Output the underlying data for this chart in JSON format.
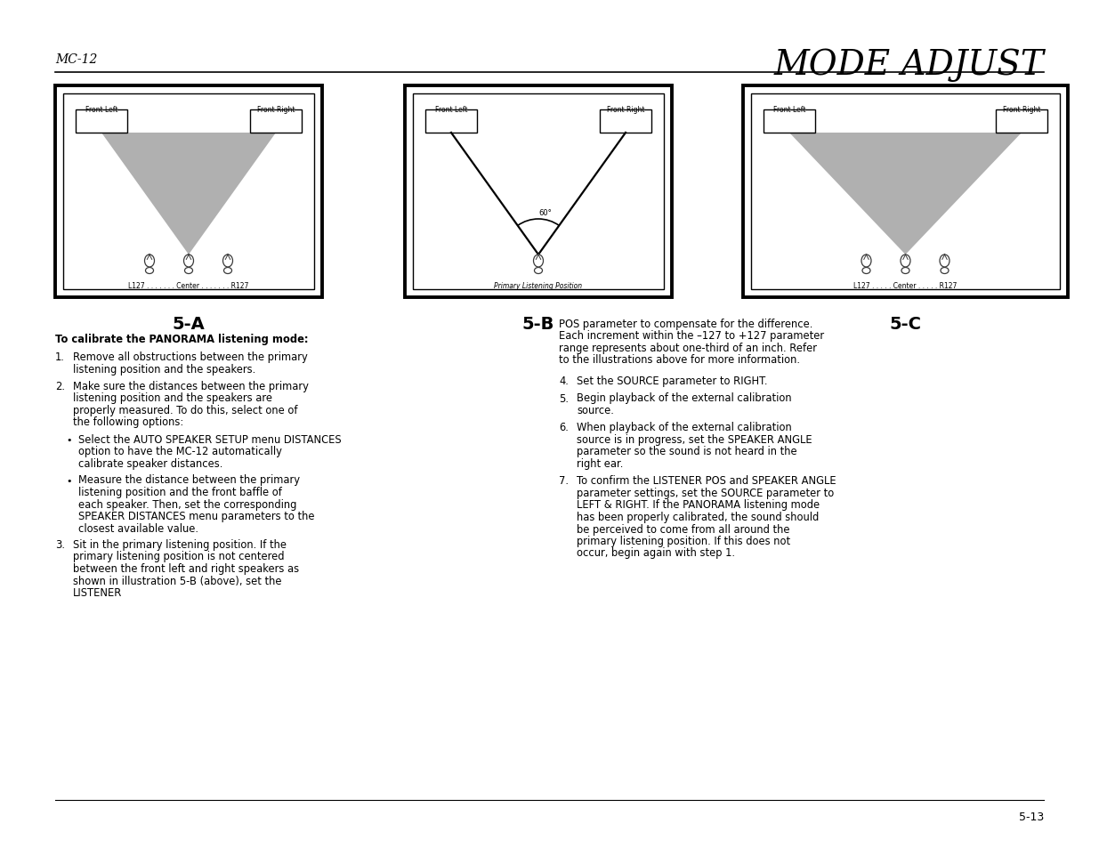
{
  "page_title": "MODE ADJUST",
  "page_subtitle": "MC-12",
  "page_number": "5-13",
  "background_color": "#ffffff",
  "gray_fill": "#b0b0b0",
  "diagrams": [
    {
      "label": "5-A",
      "title_left": "Front Left",
      "title_right": "Front Right",
      "has_gray_triangle": true,
      "has_lines": false,
      "has_arc": false,
      "has_three_listeners": true,
      "listener_label": "L127 . . . . . . . Center . . . . . . . R127",
      "left_listener_filled": true,
      "right_listener_filled": false
    },
    {
      "label": "5-B",
      "title_left": "Front Left",
      "title_right": "Front Right",
      "has_gray_triangle": false,
      "has_lines": true,
      "has_arc": true,
      "arc_label": "60°",
      "has_three_listeners": false,
      "listener_label": "Primary Listening Position",
      "left_listener_filled": false,
      "right_listener_filled": false
    },
    {
      "label": "5-C",
      "title_left": "Front Left",
      "title_right": "Front Right",
      "has_gray_triangle": true,
      "has_lines": false,
      "has_arc": false,
      "has_three_listeners": true,
      "listener_label": "L127 . . . . . Center . . . . . R127",
      "left_listener_filled": false,
      "right_listener_filled": true
    }
  ],
  "body_text_left": [
    {
      "bold": true,
      "text": "To calibrate the PANORAMA listening mode:"
    },
    {
      "numbered": true,
      "num": "1.",
      "text": "Remove all obstructions between the primary listening position and the speakers."
    },
    {
      "numbered": true,
      "num": "2.",
      "text": "Make sure the distances between the primary listening position and the speakers are properly measured. To do this, select one of the following options:"
    },
    {
      "bullet": true,
      "text": "Select the AUTO SPEAKER SETUP menu DISTANCES option to have the MC-12 automatically calibrate speaker distances."
    },
    {
      "bullet": true,
      "text": "Measure the distance between the primary listening position and the front baffle of each speaker. Then, set the corresponding SPEAKER DISTANCES menu parameters to the closest available value."
    },
    {
      "numbered": true,
      "num": "3.",
      "text": "Sit in the primary listening position. If the primary listening position is not centered between the front left and right speakers as shown in illustration 5-B (above), set the LISTENER"
    }
  ],
  "body_text_right": [
    {
      "text": "POS parameter to compensate for the difference. Each increment within the –127 to +127 parameter range represents about one-third of an inch. Refer to the illustrations above for more information."
    },
    {
      "numbered": true,
      "num": "4.",
      "text": "Set the SOURCE parameter to RIGHT."
    },
    {
      "numbered": true,
      "num": "5.",
      "text": "Begin playback of the external calibration source."
    },
    {
      "numbered": true,
      "num": "6.",
      "text": "When playback of the external calibration source is in progress, set the SPEAKER ANGLE parameter so the sound is not heard in the right ear."
    },
    {
      "numbered": true,
      "num": "7.",
      "text": "To confirm the LISTENER POS and SPEAKER ANGLE parameter settings, set the SOURCE parameter to LEFT & RIGHT. If the PANORAMA listening mode has been properly calibrated, the sound should be perceived to come from all around the primary listening position. If this does not occur, begin again with step 1."
    }
  ]
}
